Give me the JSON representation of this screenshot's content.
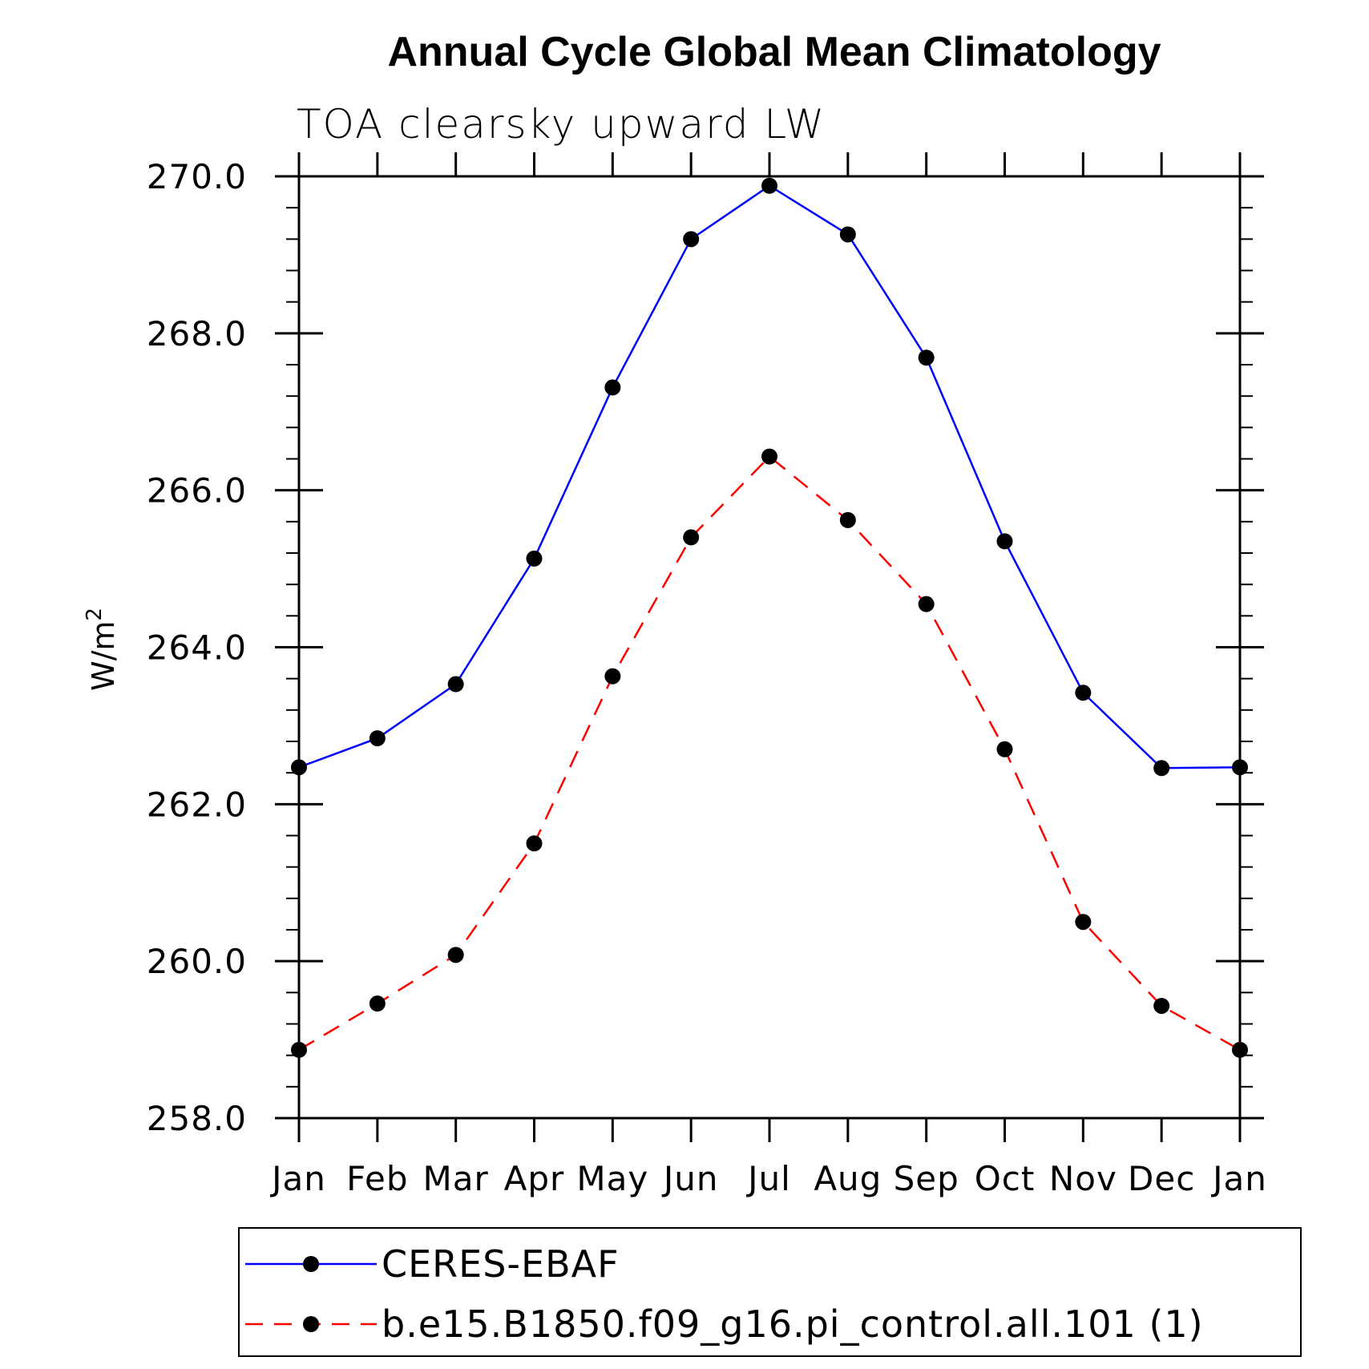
{
  "chart_data": {
    "type": "line",
    "title": "Annual Cycle Global Mean Climatology",
    "subtitle": "TOA clearsky upward LW",
    "ylabel": "W/m",
    "ylabel_superscript": "2",
    "xlabel": "",
    "ylim": [
      258.0,
      270.0
    ],
    "yticks": [
      "258.0",
      "260.0",
      "262.0",
      "264.0",
      "266.0",
      "268.0",
      "270.0"
    ],
    "categories": [
      "Jan",
      "Feb",
      "Mar",
      "Apr",
      "May",
      "Jun",
      "Jul",
      "Aug",
      "Sep",
      "Oct",
      "Nov",
      "Dec",
      "Jan"
    ],
    "grid": false,
    "legend_position": "bottom",
    "series": [
      {
        "name": "CERES-EBAF",
        "color": "#0000ff",
        "dash": "solid",
        "marker": "circle",
        "values": [
          262.47,
          262.84,
          263.53,
          265.13,
          267.31,
          269.2,
          269.88,
          269.26,
          267.69,
          265.35,
          263.42,
          262.46,
          262.47
        ]
      },
      {
        "name": "b.e15.B1850.f09_g16.pi_control.all.101 (1)",
        "color": "#ff0000",
        "dash": "dashed",
        "marker": "circle",
        "values": [
          258.87,
          259.46,
          260.08,
          261.5,
          263.63,
          265.4,
          266.43,
          265.62,
          264.55,
          262.7,
          260.5,
          259.43,
          258.87
        ]
      }
    ]
  }
}
